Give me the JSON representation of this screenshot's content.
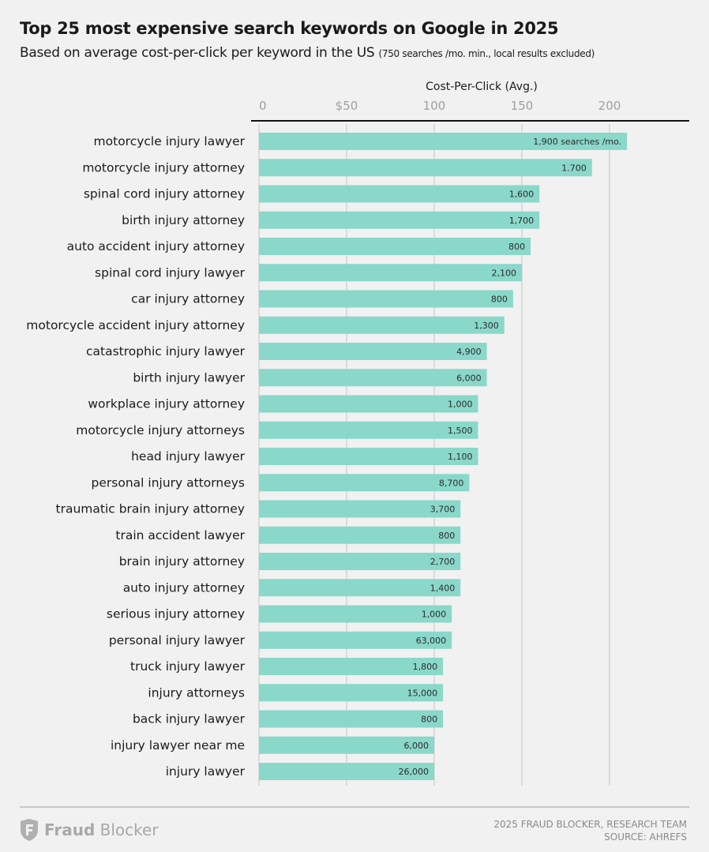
{
  "title": "Top 25 most expensive search keywords on Google in 2025",
  "subtitle": "Based on average cost-per-click per keyword in the US",
  "subtitle_note": "(750 searches /mo. min., local results excluded)",
  "footer": {
    "logo_bold": "Fraud",
    "logo_light": "Blocker",
    "credit": "2025 FRAUD BLOCKER, RESEARCH TEAM",
    "source": "SOURCE: AHREFS"
  },
  "colors": {
    "bar": "#8ad8ca",
    "background": "#f1f1f1"
  },
  "chart_data": {
    "type": "bar",
    "orientation": "horizontal",
    "title": "Top 25 most expensive search keywords on Google in 2025",
    "xlabel": "Cost-Per-Click (Avg.)",
    "xlim": [
      0,
      220
    ],
    "xticks": [
      0,
      50,
      100,
      150,
      200
    ],
    "xtick_labels": [
      "0",
      "$50",
      "100",
      "150",
      "200"
    ],
    "axis_position": "top",
    "grid": true,
    "categories": [
      "motorcycle injury lawyer",
      "motorcycle injury attorney",
      "spinal cord injury attorney",
      "birth injury attorney",
      "auto accident injury attorney",
      "spinal cord injury lawyer",
      "car injury attorney",
      "motorcycle accident injury attorney",
      "catastrophic injury lawyer",
      "birth injury lawyer",
      "workplace injury attorney",
      "motorcycle injury attorneys",
      "head injury lawyer",
      "personal injury attorneys",
      "traumatic brain injury attorney",
      "train accident lawyer",
      "brain injury attorney",
      "auto injury attorney",
      "serious injury attorney",
      "personal injury lawyer",
      "truck injury lawyer",
      "injury attorneys",
      "back injury lawyer",
      "injury lawyer near me",
      "injury lawyer"
    ],
    "values": [
      210,
      190,
      160,
      160,
      155,
      150,
      145,
      140,
      130,
      130,
      125,
      125,
      125,
      120,
      115,
      115,
      115,
      115,
      110,
      110,
      105,
      105,
      105,
      100,
      100
    ],
    "data_labels": [
      "1,900 searches /mo.",
      "1.700",
      "1,600",
      "1,700",
      "800",
      "2,100",
      "800",
      "1,300",
      "4,900",
      "6,000",
      "1,000",
      "1,500",
      "1,100",
      "8,700",
      "3,700",
      "800",
      "2,700",
      "1,400",
      "1,000",
      "63,000",
      "1,800",
      "15,000",
      "800",
      "6,000",
      "26,000"
    ]
  }
}
